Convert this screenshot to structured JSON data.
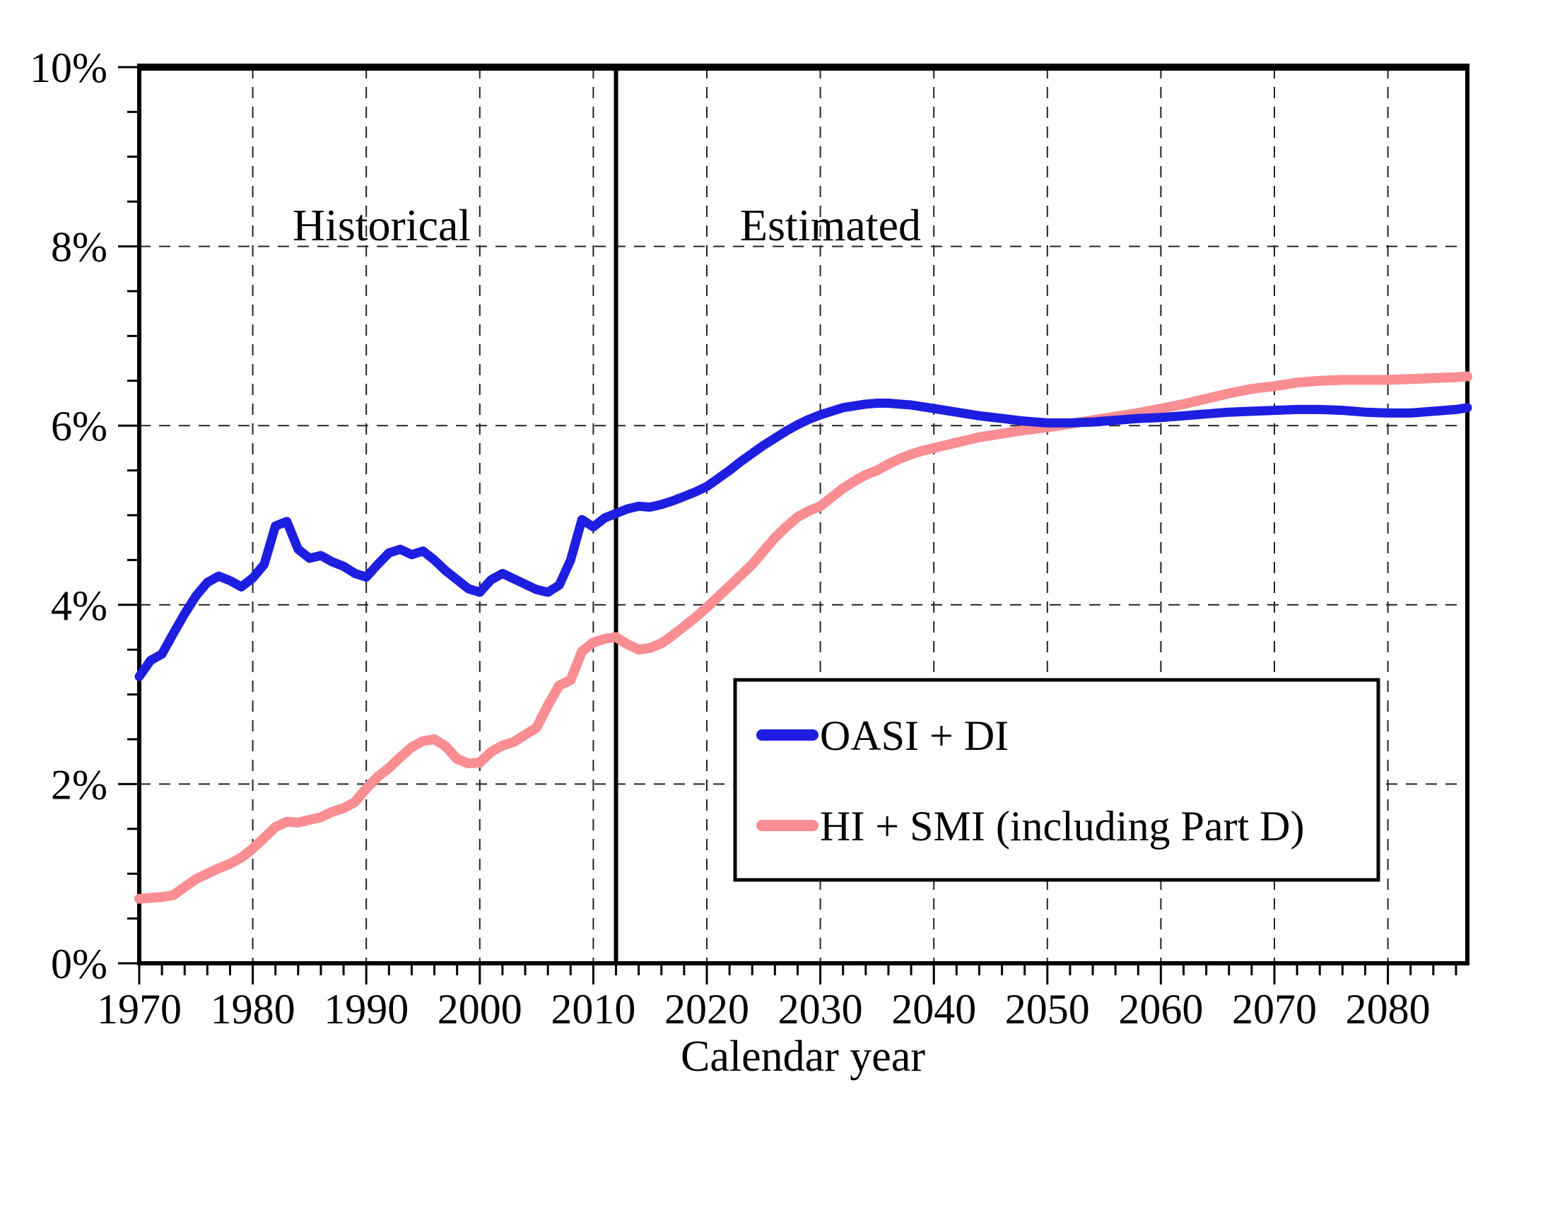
{
  "figure": {
    "region_labels": {
      "historical": "Historical",
      "estimated": "Estimated"
    },
    "x_axis_title": "Calendar year"
  },
  "chart_data": {
    "type": "line",
    "title": "",
    "xlabel": "Calendar year",
    "ylabel": "",
    "x_range": [
      1970,
      2087
    ],
    "y_range": [
      0,
      10
    ],
    "grid": "dashed major gridlines",
    "legend_position": "inside lower-right box",
    "boundary_year": 2012,
    "x_minor_step": 2,
    "y_minor_step": 0.5,
    "x_ticks": [
      {
        "v": 1970,
        "label": "1970"
      },
      {
        "v": 1980,
        "label": "1980"
      },
      {
        "v": 1990,
        "label": "1990"
      },
      {
        "v": 2000,
        "label": "2000"
      },
      {
        "v": 2010,
        "label": "2010"
      },
      {
        "v": 2020,
        "label": "2020"
      },
      {
        "v": 2030,
        "label": "2030"
      },
      {
        "v": 2040,
        "label": "2040"
      },
      {
        "v": 2050,
        "label": "2050"
      },
      {
        "v": 2060,
        "label": "2060"
      },
      {
        "v": 2070,
        "label": "2070"
      },
      {
        "v": 2080,
        "label": "2080"
      }
    ],
    "y_ticks": [
      {
        "v": 0,
        "label": "0%"
      },
      {
        "v": 2,
        "label": "2%"
      },
      {
        "v": 4,
        "label": "4%"
      },
      {
        "v": 6,
        "label": "6%"
      },
      {
        "v": 8,
        "label": "8%"
      },
      {
        "v": 10,
        "label": "10%"
      }
    ],
    "series": [
      {
        "name": "OASI + DI",
        "color": "#1e1ee0",
        "points": [
          [
            1970,
            3.2
          ],
          [
            1971,
            3.38
          ],
          [
            1972,
            3.45
          ],
          [
            1973,
            3.68
          ],
          [
            1974,
            3.9
          ],
          [
            1975,
            4.1
          ],
          [
            1976,
            4.25
          ],
          [
            1977,
            4.32
          ],
          [
            1978,
            4.27
          ],
          [
            1979,
            4.2
          ],
          [
            1980,
            4.3
          ],
          [
            1981,
            4.45
          ],
          [
            1982,
            4.88
          ],
          [
            1983,
            4.93
          ],
          [
            1984,
            4.62
          ],
          [
            1985,
            4.52
          ],
          [
            1986,
            4.55
          ],
          [
            1987,
            4.48
          ],
          [
            1988,
            4.43
          ],
          [
            1989,
            4.35
          ],
          [
            1990,
            4.31
          ],
          [
            1991,
            4.45
          ],
          [
            1992,
            4.58
          ],
          [
            1993,
            4.62
          ],
          [
            1994,
            4.56
          ],
          [
            1995,
            4.6
          ],
          [
            1996,
            4.5
          ],
          [
            1997,
            4.38
          ],
          [
            1998,
            4.28
          ],
          [
            1999,
            4.18
          ],
          [
            2000,
            4.14
          ],
          [
            2001,
            4.28
          ],
          [
            2002,
            4.35
          ],
          [
            2003,
            4.29
          ],
          [
            2004,
            4.23
          ],
          [
            2005,
            4.17
          ],
          [
            2006,
            4.14
          ],
          [
            2007,
            4.22
          ],
          [
            2008,
            4.5
          ],
          [
            2009,
            4.95
          ],
          [
            2010,
            4.87
          ],
          [
            2011,
            4.97
          ],
          [
            2012,
            5.02
          ],
          [
            2013,
            5.07
          ],
          [
            2014,
            5.1
          ],
          [
            2015,
            5.09
          ],
          [
            2016,
            5.12
          ],
          [
            2017,
            5.16
          ],
          [
            2018,
            5.21
          ],
          [
            2019,
            5.26
          ],
          [
            2020,
            5.32
          ],
          [
            2021,
            5.41
          ],
          [
            2022,
            5.5
          ],
          [
            2023,
            5.6
          ],
          [
            2024,
            5.69
          ],
          [
            2025,
            5.78
          ],
          [
            2026,
            5.86
          ],
          [
            2027,
            5.94
          ],
          [
            2028,
            6.01
          ],
          [
            2029,
            6.07
          ],
          [
            2030,
            6.12
          ],
          [
            2031,
            6.16
          ],
          [
            2032,
            6.2
          ],
          [
            2033,
            6.22
          ],
          [
            2034,
            6.24
          ],
          [
            2035,
            6.25
          ],
          [
            2036,
            6.25
          ],
          [
            2037,
            6.24
          ],
          [
            2038,
            6.23
          ],
          [
            2039,
            6.21
          ],
          [
            2040,
            6.19
          ],
          [
            2042,
            6.15
          ],
          [
            2044,
            6.11
          ],
          [
            2046,
            6.08
          ],
          [
            2048,
            6.05
          ],
          [
            2050,
            6.03
          ],
          [
            2052,
            6.03
          ],
          [
            2054,
            6.04
          ],
          [
            2056,
            6.06
          ],
          [
            2058,
            6.08
          ],
          [
            2060,
            6.09
          ],
          [
            2062,
            6.11
          ],
          [
            2064,
            6.13
          ],
          [
            2066,
            6.15
          ],
          [
            2068,
            6.16
          ],
          [
            2070,
            6.17
          ],
          [
            2072,
            6.18
          ],
          [
            2074,
            6.18
          ],
          [
            2076,
            6.17
          ],
          [
            2078,
            6.15
          ],
          [
            2080,
            6.14
          ],
          [
            2082,
            6.14
          ],
          [
            2084,
            6.16
          ],
          [
            2086,
            6.18
          ],
          [
            2087,
            6.2
          ]
        ]
      },
      {
        "name": "HI + SMI (including Part D)",
        "color": "#f98d92",
        "points": [
          [
            1970,
            0.72
          ],
          [
            1971,
            0.73
          ],
          [
            1972,
            0.74
          ],
          [
            1973,
            0.76
          ],
          [
            1974,
            0.85
          ],
          [
            1975,
            0.94
          ],
          [
            1976,
            1.0
          ],
          [
            1977,
            1.06
          ],
          [
            1978,
            1.11
          ],
          [
            1979,
            1.18
          ],
          [
            1980,
            1.28
          ],
          [
            1981,
            1.4
          ],
          [
            1982,
            1.52
          ],
          [
            1983,
            1.58
          ],
          [
            1984,
            1.57
          ],
          [
            1985,
            1.6
          ],
          [
            1986,
            1.63
          ],
          [
            1987,
            1.69
          ],
          [
            1988,
            1.73
          ],
          [
            1989,
            1.8
          ],
          [
            1990,
            1.95
          ],
          [
            1991,
            2.08
          ],
          [
            1992,
            2.18
          ],
          [
            1993,
            2.3
          ],
          [
            1994,
            2.41
          ],
          [
            1995,
            2.48
          ],
          [
            1996,
            2.5
          ],
          [
            1997,
            2.42
          ],
          [
            1998,
            2.28
          ],
          [
            1999,
            2.23
          ],
          [
            2000,
            2.24
          ],
          [
            2001,
            2.36
          ],
          [
            2002,
            2.43
          ],
          [
            2003,
            2.47
          ],
          [
            2004,
            2.55
          ],
          [
            2005,
            2.63
          ],
          [
            2006,
            2.88
          ],
          [
            2007,
            3.1
          ],
          [
            2008,
            3.16
          ],
          [
            2009,
            3.48
          ],
          [
            2010,
            3.58
          ],
          [
            2011,
            3.62
          ],
          [
            2012,
            3.64
          ],
          [
            2013,
            3.56
          ],
          [
            2014,
            3.5
          ],
          [
            2015,
            3.52
          ],
          [
            2016,
            3.57
          ],
          [
            2017,
            3.66
          ],
          [
            2018,
            3.76
          ],
          [
            2019,
            3.86
          ],
          [
            2020,
            3.97
          ],
          [
            2021,
            4.09
          ],
          [
            2022,
            4.21
          ],
          [
            2023,
            4.33
          ],
          [
            2024,
            4.45
          ],
          [
            2025,
            4.6
          ],
          [
            2026,
            4.75
          ],
          [
            2027,
            4.87
          ],
          [
            2028,
            4.98
          ],
          [
            2029,
            5.05
          ],
          [
            2030,
            5.1
          ],
          [
            2031,
            5.2
          ],
          [
            2032,
            5.3
          ],
          [
            2033,
            5.38
          ],
          [
            2034,
            5.45
          ],
          [
            2035,
            5.5
          ],
          [
            2036,
            5.57
          ],
          [
            2037,
            5.63
          ],
          [
            2038,
            5.68
          ],
          [
            2039,
            5.72
          ],
          [
            2040,
            5.75
          ],
          [
            2042,
            5.81
          ],
          [
            2044,
            5.87
          ],
          [
            2046,
            5.91
          ],
          [
            2048,
            5.95
          ],
          [
            2050,
            5.98
          ],
          [
            2052,
            6.02
          ],
          [
            2054,
            6.06
          ],
          [
            2056,
            6.1
          ],
          [
            2058,
            6.14
          ],
          [
            2060,
            6.19
          ],
          [
            2062,
            6.24
          ],
          [
            2064,
            6.3
          ],
          [
            2066,
            6.36
          ],
          [
            2068,
            6.41
          ],
          [
            2070,
            6.44
          ],
          [
            2072,
            6.48
          ],
          [
            2074,
            6.5
          ],
          [
            2076,
            6.51
          ],
          [
            2078,
            6.51
          ],
          [
            2080,
            6.51
          ],
          [
            2082,
            6.52
          ],
          [
            2084,
            6.53
          ],
          [
            2086,
            6.54
          ],
          [
            2087,
            6.55
          ]
        ]
      }
    ]
  }
}
